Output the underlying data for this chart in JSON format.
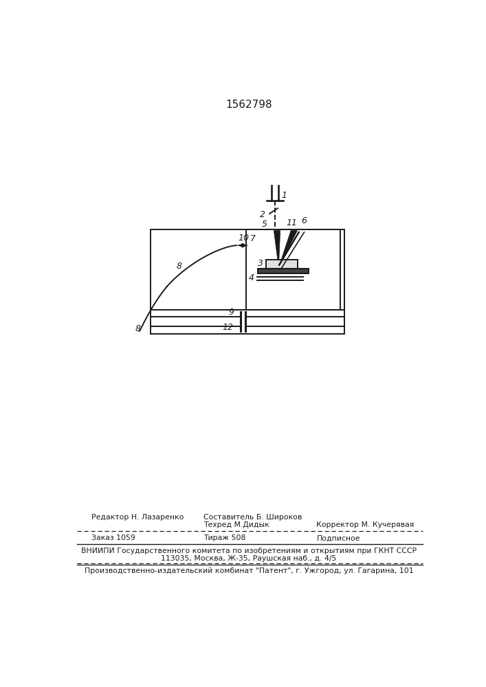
{
  "title": "1562798",
  "bg_color": "#ffffff",
  "line_color": "#1a1a1a",
  "dark_fill": "#1a1a1a",
  "fig_width": 7.07,
  "fig_height": 10.0,
  "footer": {
    "line1_left": "Редактор Н. Лазаренко",
    "line1_mid_top": "Составитель Б. Широков",
    "line1_mid_bot": "Техред М.Дидык",
    "line1_right": "Корректор М. Кучерявая",
    "line2_left": "Заказ 1059",
    "line2_mid": "Тираж 508",
    "line2_right": "Подписное",
    "line3": "ВНИИПИ Государственного комитета по изобретениям и открытиям при ГКНТ СССР",
    "line4": "113035, Москва, Ж-35, Раушская наб., д. 4/5",
    "line5": "Производственно-издательский комбинат \"Патент\", г. Ужгород, ул. Гагарина, 101"
  }
}
